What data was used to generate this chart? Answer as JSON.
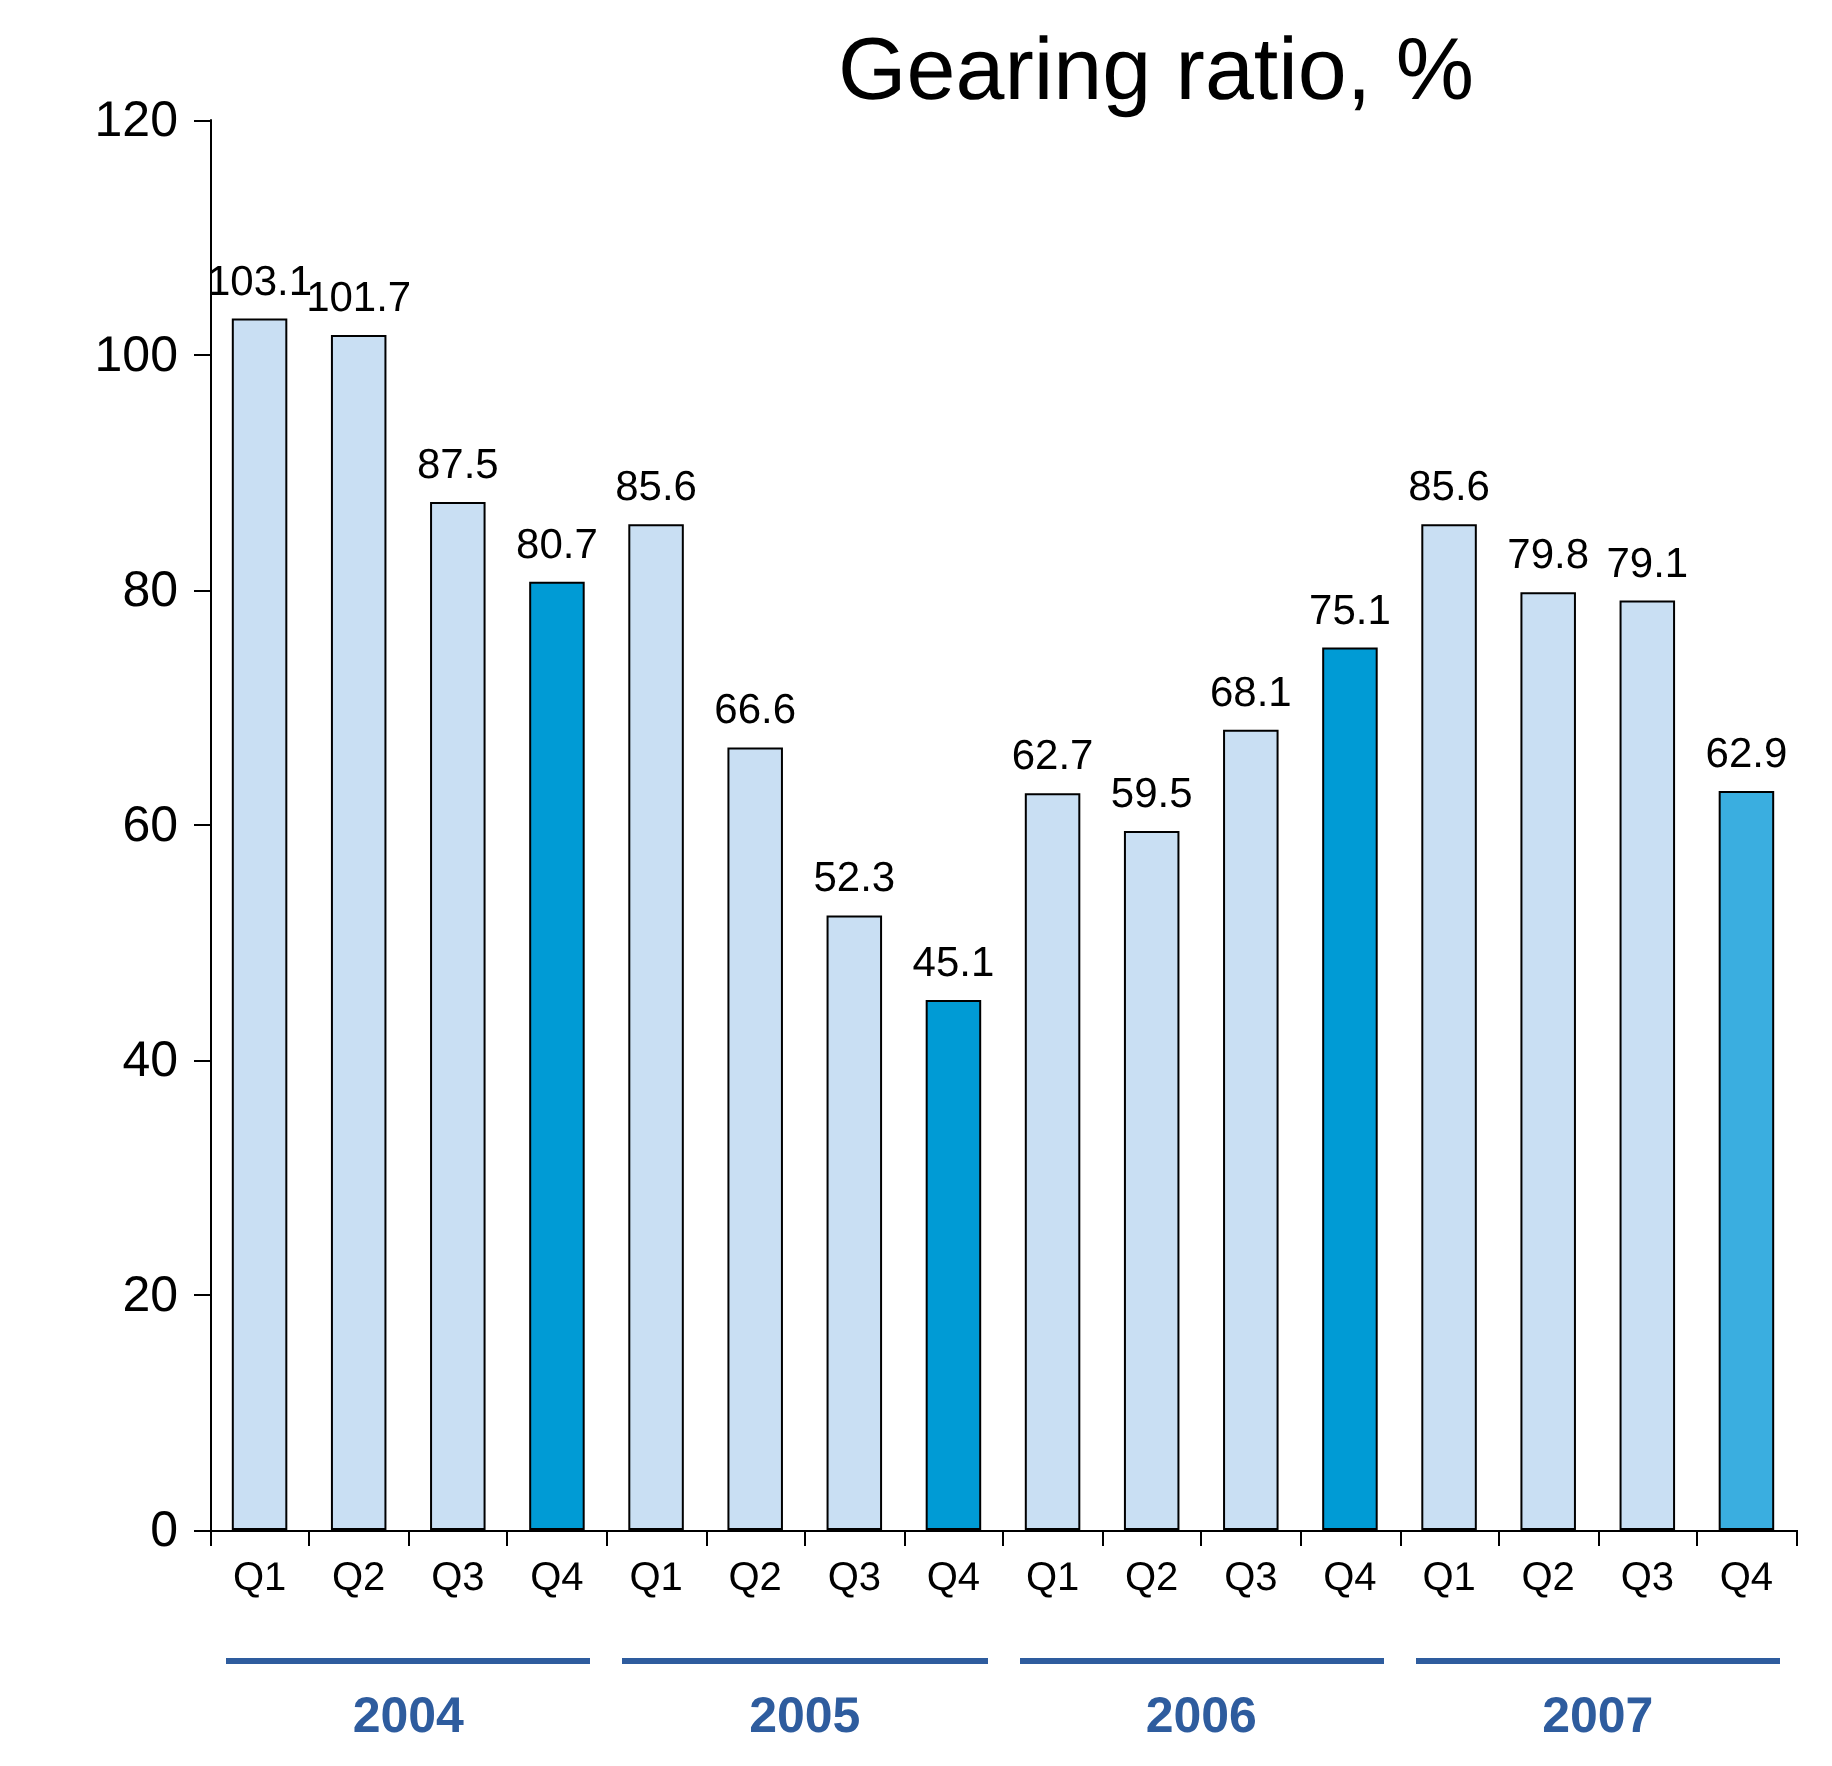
{
  "chart_data": {
    "type": "bar",
    "title": "Gearing ratio, %",
    "categories": [
      "Q1",
      "Q2",
      "Q3",
      "Q4",
      "Q1",
      "Q2",
      "Q3",
      "Q4",
      "Q1",
      "Q2",
      "Q3",
      "Q4",
      "Q1",
      "Q2",
      "Q3",
      "Q4"
    ],
    "values": [
      103.1,
      101.7,
      87.5,
      80.7,
      85.6,
      66.6,
      52.3,
      45.1,
      62.7,
      59.5,
      68.1,
      75.1,
      85.6,
      79.8,
      79.1,
      62.9
    ],
    "colors": [
      "#c9dff3",
      "#c9dff3",
      "#c9dff3",
      "#009bd5",
      "#c9dff3",
      "#c9dff3",
      "#c9dff3",
      "#009bd5",
      "#c9dff3",
      "#c9dff3",
      "#c9dff3",
      "#009bd5",
      "#c9dff3",
      "#c9dff3",
      "#c9dff3",
      "#3aaee0"
    ],
    "ylim": [
      0,
      120
    ],
    "yticks": [
      0,
      20,
      40,
      60,
      80,
      100,
      120
    ],
    "grid": false,
    "data_labels": true,
    "annotations": [
      "2004",
      "2005",
      "2006",
      "2007"
    ]
  }
}
